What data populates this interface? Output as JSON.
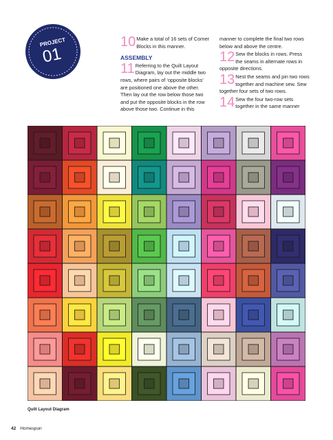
{
  "badge": {
    "label": "PROJECT",
    "number": "01"
  },
  "steps": [
    {
      "number": "10",
      "text": "Make a total of 16 sets of Corner Blocks in this manner."
    },
    {
      "heading": "ASSEMBLY"
    },
    {
      "number": "11",
      "text": "Referring to the Quilt Layout Diagram, lay out the middle two rows, where pairs of ‘opposite blocks’ are positioned one above the other. Then lay out the row below those two and put the opposite blocks in the row above those two. Continue in this manner to complete the final two rows below and above the centre."
    },
    {
      "number": "12",
      "text": "Sew the blocks in rows. Press the seams in alternate rows in opposite directions."
    },
    {
      "number": "13",
      "text": "Nest the seams and pin two rows together and machine sew. Sew together four sets of two rows."
    },
    {
      "number": "14",
      "text": "Sew the four two-row sets together in the same manner"
    }
  ],
  "caption": "Quilt Layout Diagram",
  "footer": {
    "page": "42",
    "magazine": "Homespun"
  }
}
